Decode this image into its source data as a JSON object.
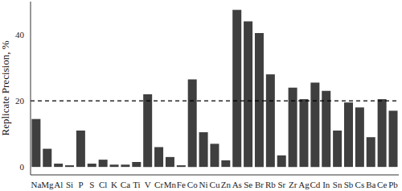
{
  "chart_data": {
    "type": "bar",
    "y_label": "Replicate Precision, %",
    "categories": [
      "Na",
      "Mg",
      "Al",
      "Si",
      "P",
      "S",
      "Cl",
      "K",
      "Ca",
      "Ti",
      "V",
      "Cr",
      "Mn",
      "Fe",
      "Co",
      "Ni",
      "Cu",
      "Zn",
      "As",
      "Se",
      "Br",
      "Rb",
      "Sr",
      "Zr",
      "Ag",
      "Cd",
      "In",
      "Sn",
      "Sb",
      "Cs",
      "Ba",
      "Ce",
      "Pb"
    ],
    "values": [
      14.5,
      5.5,
      1,
      0.5,
      11,
      1,
      2.2,
      0.7,
      0.7,
      1.5,
      22,
      6,
      3,
      0.5,
      26.5,
      10.5,
      7,
      2,
      47.5,
      44,
      40.5,
      28,
      3.5,
      24,
      20.5,
      25.5,
      23,
      11,
      19.5,
      18,
      9,
      20.5,
      17
    ],
    "color": "#3f3f3f",
    "ylim": [
      -2.4,
      50
    ],
    "yticks": [
      0,
      20,
      40
    ],
    "grid": false,
    "reference_line": 20
  }
}
